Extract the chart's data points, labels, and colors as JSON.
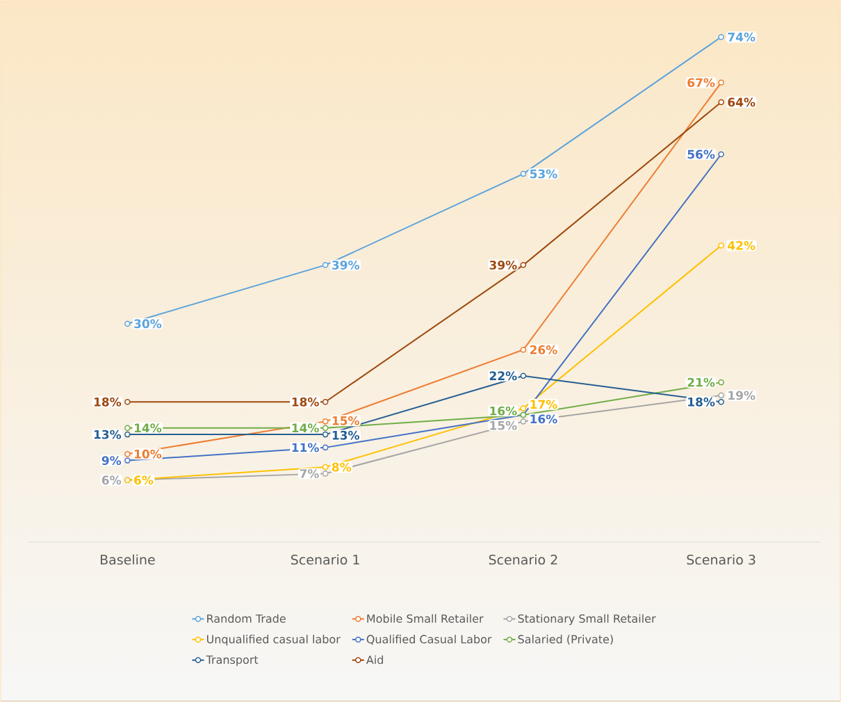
{
  "chart_data": {
    "type": "line",
    "categories": [
      "Baseline",
      "Scenario 1",
      "Scenario 2",
      "Scenario 3"
    ],
    "tick_labels": "x",
    "grid": false,
    "legend": "bottom",
    "marker": "circle",
    "line_style": "solid",
    "series": [
      {
        "name": "Random Trade",
        "color": "#5ba3dc",
        "values": [
          30,
          39,
          53,
          74
        ],
        "value_labels": [
          "30%",
          "39%",
          "53%",
          "74%"
        ]
      },
      {
        "name": "Mobile Small Retailer",
        "color": "#ed7d31",
        "values": [
          10,
          15,
          26,
          67
        ],
        "value_labels": [
          "10%",
          "15%",
          "26%",
          "67%"
        ]
      },
      {
        "name": "Stationary Small Retailer",
        "color": "#a5a5a5",
        "values": [
          6,
          7,
          15,
          19
        ],
        "value_labels": [
          "6%",
          "7%",
          "15%",
          "19%"
        ]
      },
      {
        "name": "Unqualified casual labor",
        "color": "#ffc000",
        "values": [
          6,
          8,
          17,
          42
        ],
        "value_labels": [
          "6%",
          "8%",
          "17%",
          "42%"
        ]
      },
      {
        "name": "Qualified Casual Labor",
        "color": "#4472c4",
        "values": [
          9,
          11,
          16,
          56
        ],
        "value_labels": [
          "9%",
          "11%",
          "16%",
          "56%"
        ]
      },
      {
        "name": "Salaried (Private)",
        "color": "#70ad47",
        "values": [
          14,
          14,
          16,
          21
        ],
        "value_labels": [
          "14%",
          "14%",
          "16%",
          "21%"
        ]
      },
      {
        "name": "Transport",
        "color": "#255e91",
        "values": [
          13,
          13,
          22,
          18
        ],
        "value_labels": [
          "13%",
          "13%",
          "22%",
          "18%"
        ]
      },
      {
        "name": "Aid",
        "color": "#9e480e",
        "values": [
          18,
          18,
          39,
          64
        ],
        "value_labels": [
          "18%",
          "18%",
          "39%",
          "64%"
        ]
      }
    ]
  }
}
